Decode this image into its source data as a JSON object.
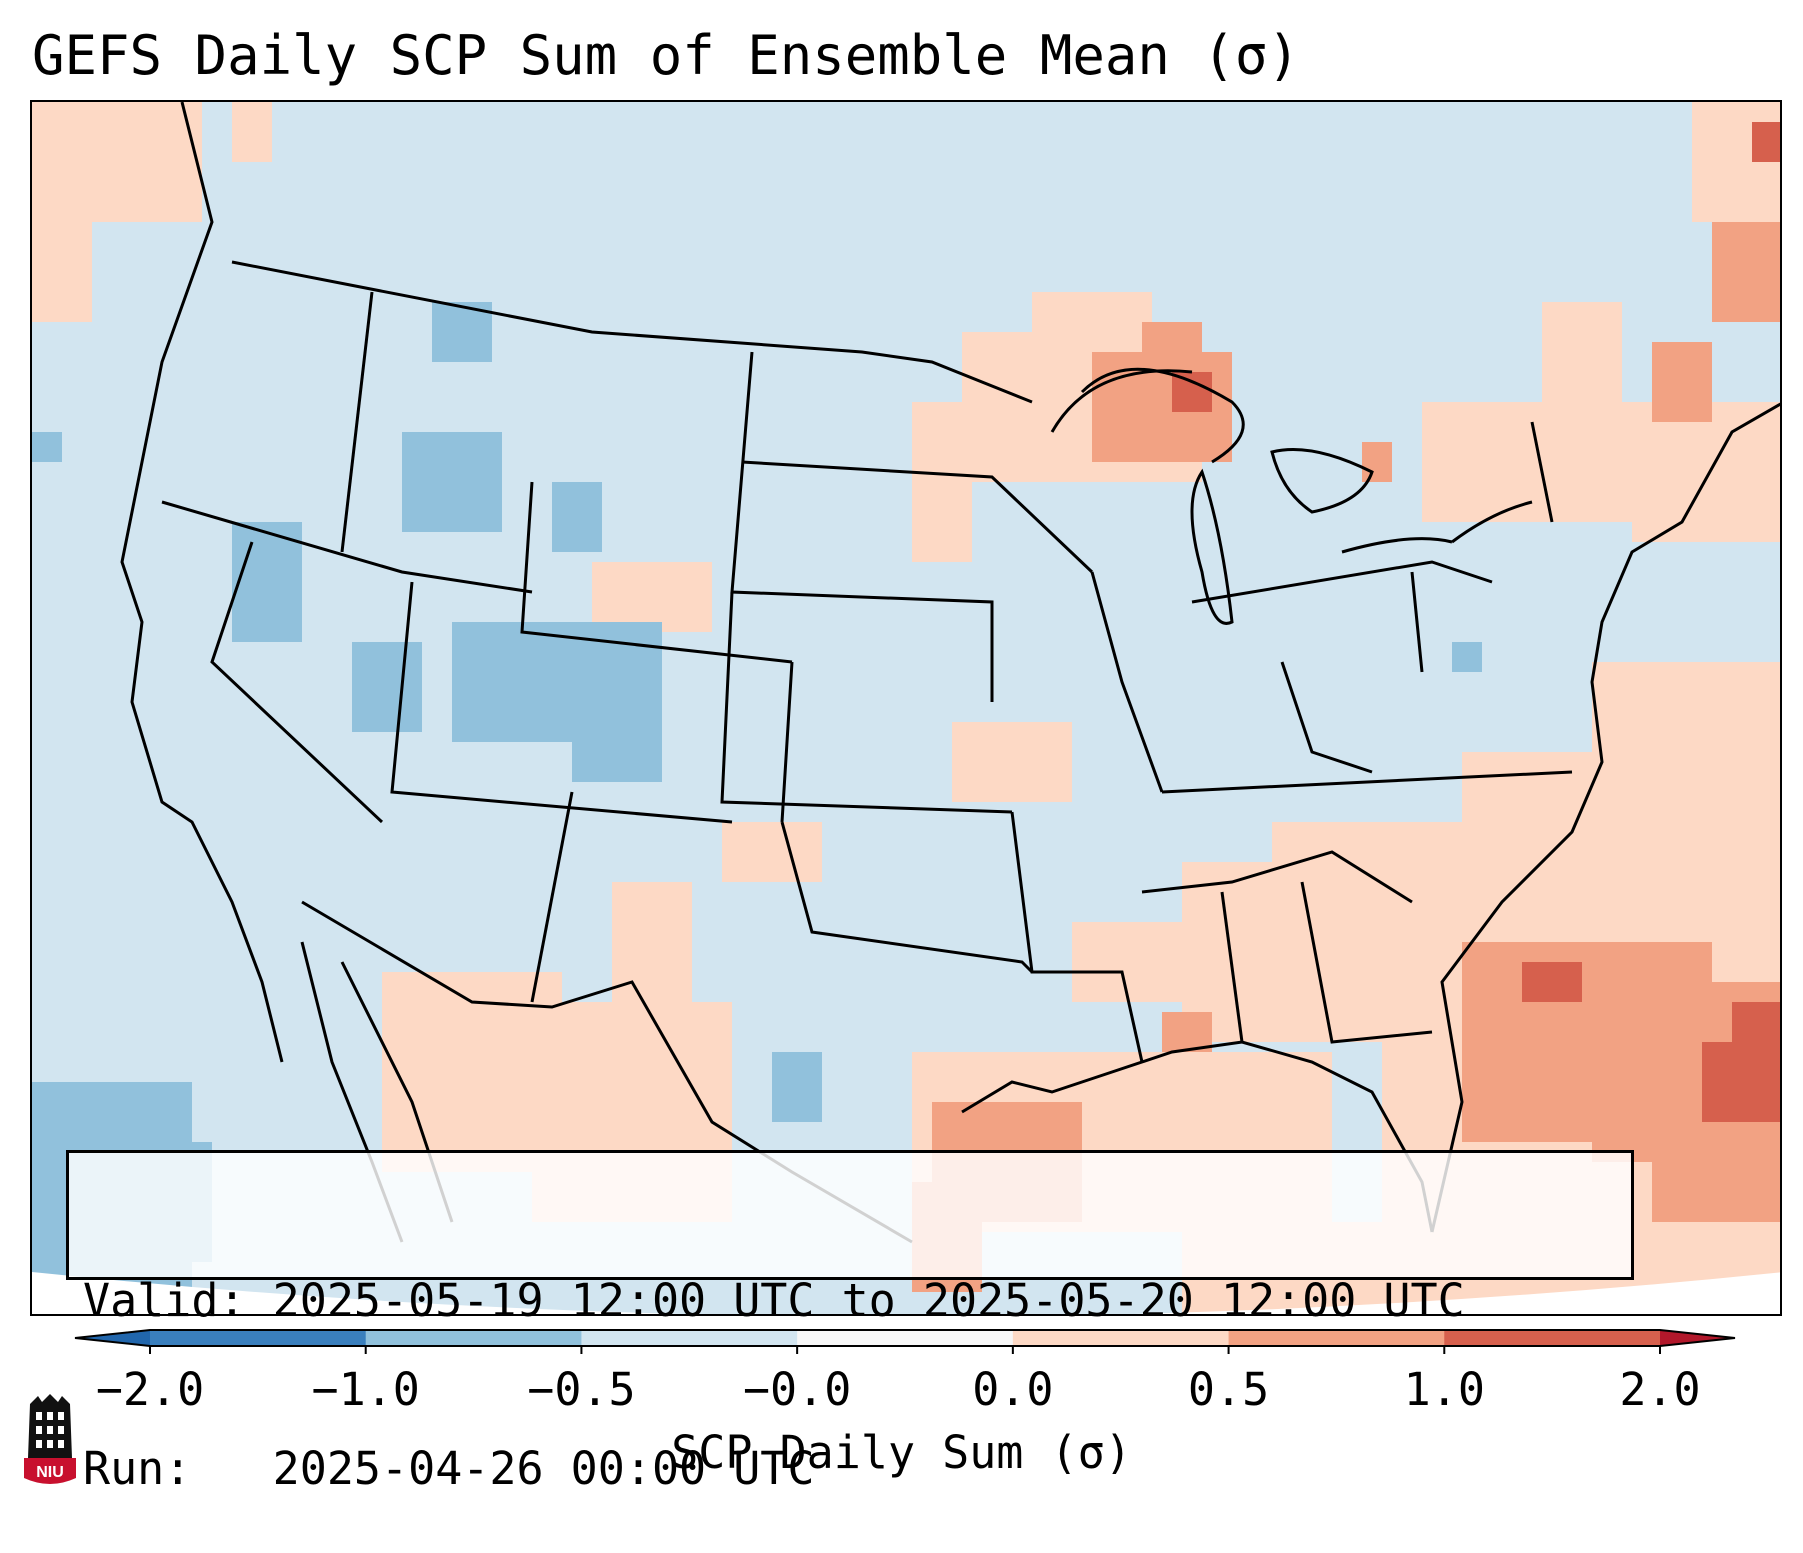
{
  "title": "GEFS Daily SCP Sum of Ensemble Mean (σ)",
  "map": {
    "region": "Continental United States",
    "variable": "SCP Daily Sum anomaly (σ)",
    "highlights": [
      "Positive anomaly (0.5 to 1.0+) over Upper Michigan / Lake Superior",
      "Positive anomaly (0.5 to 2.0) over western Atlantic off Southeast coast",
      "Positive anomaly (0.5 to 1.0) over Texas Gulf Coast",
      "Negative anomaly (-0.5 to -1.0) over Great Basin, Idaho and western Colorado",
      "Negative anomaly (-0.5 to -1.0) over eastern Pacific"
    ]
  },
  "info": {
    "valid_line": "Valid: 2025-05-19 12:00 UTC to 2025-05-20 12:00 UTC",
    "run_line": "Run:   2025-04-26 00:00 UTC"
  },
  "colorbar": {
    "label": "SCP Daily Sum (σ)",
    "ticks": [
      "−2.0",
      "−1.0",
      "−0.5",
      "−0.0",
      "0.0",
      "0.5",
      "1.0",
      "2.0"
    ],
    "colors": [
      "#3a7fbd",
      "#91c1dc",
      "#d2e5f0",
      "#f7f7f7",
      "#fdd9c5",
      "#f2a283",
      "#d6604d"
    ],
    "under_color": "#2166ac",
    "over_color": "#b2182b"
  },
  "logo": {
    "text": "NIU",
    "color": "#c8102e"
  }
}
